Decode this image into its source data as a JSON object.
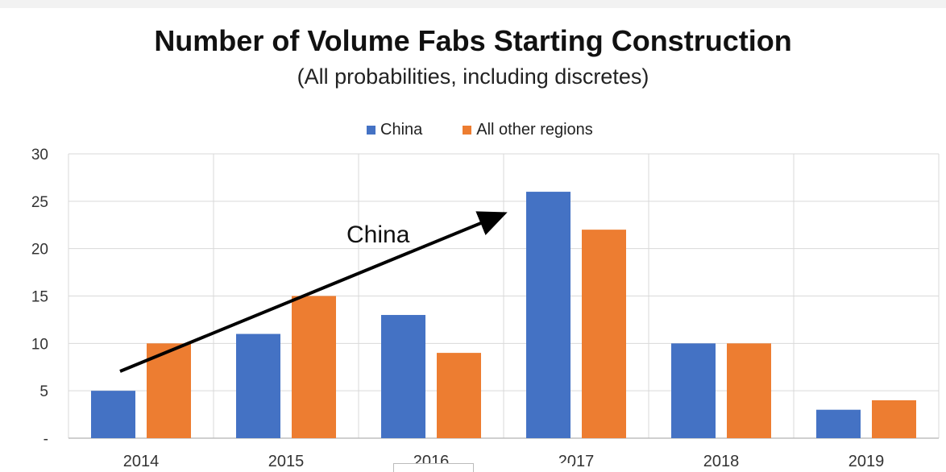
{
  "chart_data": {
    "type": "bar",
    "title": "Number of Volume Fabs Starting Construction",
    "subtitle": "(All probabilities, including discretes)",
    "categories": [
      "2014",
      "2015",
      "2016",
      "2017",
      "2018",
      "2019"
    ],
    "series": [
      {
        "name": "China",
        "values": [
          5,
          11,
          13,
          26,
          10,
          3
        ],
        "color": "#4472c4"
      },
      {
        "name": "All other regions",
        "values": [
          10,
          15,
          9,
          22,
          10,
          4
        ],
        "color": "#ed7d31"
      }
    ],
    "ylim": [
      0,
      30
    ],
    "yticks": [
      0,
      5,
      10,
      15,
      20,
      25,
      30
    ],
    "ytick_labels": [
      "-",
      "5",
      "10",
      "15",
      "20",
      "25",
      "30"
    ],
    "grid": true,
    "legend_position": "top-center",
    "annotation": {
      "text": "China",
      "arrow": "rising trend arrow from 2014 to 2017"
    }
  }
}
